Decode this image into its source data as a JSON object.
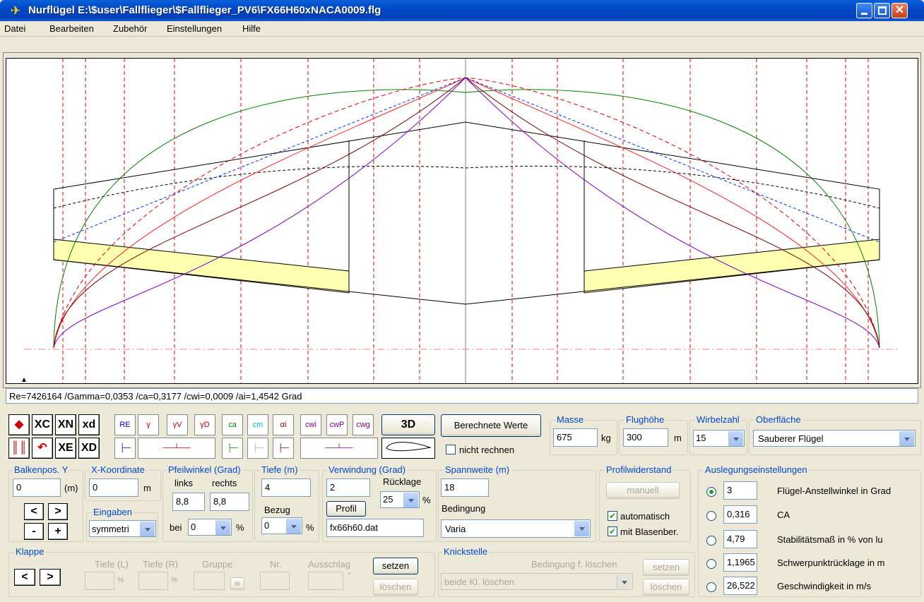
{
  "window": {
    "title": "Nurflügel   E:\\$user\\Fallflieger\\$Fallflieger_PV6\\FX66H60xNACA0009.flg"
  },
  "menu": [
    "Datei",
    "Bearbeiten",
    "Zubehör",
    "Einstellungen",
    "Hilfe"
  ],
  "status_line": "Re=7426164 /Gamma=0,0353 /ca=0,3177 /cwi=0,0009 /ai=1,4542 Grad",
  "toolbar": {
    "row1": [
      "XC",
      "XN",
      "xd"
    ],
    "row2": [
      "XE",
      "XD"
    ],
    "curves": [
      "RE",
      "γ",
      "γV",
      "γD",
      "ca",
      "cm",
      "αi",
      "cwi",
      "cwP",
      "cwg"
    ],
    "btn3d": "3D"
  },
  "berechnete": {
    "button": "Berechnete Werte",
    "nicht_rechnen": "nicht rechnen"
  },
  "masse": {
    "label": "Masse",
    "value": "675",
    "unit": "kg"
  },
  "flughoehe": {
    "label": "Flughöhe",
    "value": "300",
    "unit": "m"
  },
  "wirbelzahl": {
    "label": "Wirbelzahl",
    "value": "15"
  },
  "oberflaeche": {
    "label": "Oberfläche",
    "value": "Sauberer Flügel"
  },
  "balkenpos": {
    "label": "Balkenpos. Y",
    "value": "0",
    "unit": "(m)",
    "lt": "<",
    "gt": ">",
    "minus": "-",
    "plus": "+"
  },
  "xkoord": {
    "label": "X-Koordinate",
    "value": "0",
    "unit": "m"
  },
  "eingaben": {
    "label": "Eingaben",
    "value": "symmetri"
  },
  "pfeil": {
    "label": "Pfeilwinkel (Grad)",
    "links": "links",
    "rechts": "rechts",
    "links_val": "8,8",
    "rechts_val": "8,8",
    "bei": "bei",
    "bei_val": "0",
    "pct": "%"
  },
  "tiefe": {
    "label": "Tiefe (m)",
    "value": "4",
    "bezug": "Bezug",
    "bezug_val": "0",
    "pct": "%"
  },
  "verwindung": {
    "label": "Verwindung (Grad)",
    "value": "2",
    "ruecklage": "Rücklage",
    "rueck_val": "25",
    "pct": "%",
    "profil": "Profil",
    "profil_file": "fx66h60.dat"
  },
  "spannweite": {
    "label": "Spannweite (m)",
    "value": "18",
    "bedingung": "Bedingung",
    "bed_val": "Varia"
  },
  "profilwid": {
    "label": "Profilwiderstand",
    "manuell": "manuell",
    "auto": "automatisch",
    "blasen": "mit Blasenber."
  },
  "auslegung": {
    "label": "Auslegungseinstellungen",
    "rows": [
      {
        "val": "3",
        "txt": "Flügel-Anstellwinkel in Grad"
      },
      {
        "val": "0,316",
        "txt": "CA"
      },
      {
        "val": "4,79",
        "txt": "Stabilitätsmaß in % von lu"
      },
      {
        "val": "1,1965",
        "txt": "Schwerpunktrücklage in m"
      },
      {
        "val": "26,522",
        "txt": "Geschwindigkeit in m/s"
      }
    ]
  },
  "klappe": {
    "label": "Klappe",
    "lt": "<",
    "gt": ">",
    "tiefe_l": "Tiefe (L)",
    "tiefe_r": "Tiefe (R)",
    "gruppe": "Gruppe",
    "nr": "Nr.",
    "ausschlag": "Ausschlag",
    "pct": "%",
    "w": "w",
    "deg": "°",
    "setzen": "setzen",
    "loeschen": "löschen"
  },
  "knick": {
    "label": "Knickstelle",
    "bed": "Bedingung f. löschen",
    "value": "beide Kl. löschen",
    "setzen": "setzen",
    "loeschen": "löschen"
  }
}
